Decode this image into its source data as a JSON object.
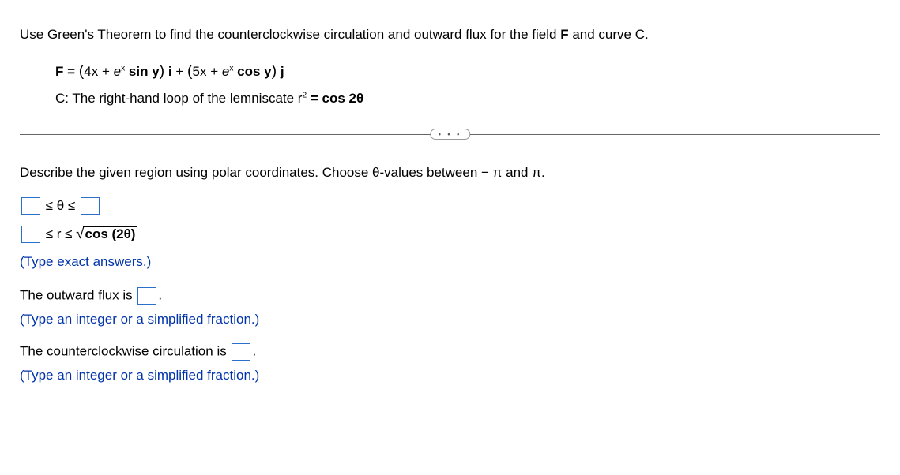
{
  "intro": "Use Green's Theorem to find the counterclockwise circulation and outward flux for the field ",
  "intro_tail": " and curve C.",
  "F_label": "F",
  "formula": {
    "lead": "F = ",
    "term1_open": "(",
    "term1_a": "4x + ",
    "term1_e": "e",
    "term1_exp": "x",
    "term1_b": " sin y",
    "term1_close": ")",
    "unit_i": " i ",
    "plus": "+ ",
    "term2_open": "(",
    "term2_a": "5x + ",
    "term2_e": "e",
    "term2_exp": "x",
    "term2_b": " cos y",
    "term2_close": ")",
    "unit_j": " j"
  },
  "curve": {
    "lead": "C: The right-hand loop of the lemniscate r",
    "exp": "2",
    "tail": " = cos 2θ"
  },
  "divider_dots": "• • •",
  "describe": {
    "part1": "Describe the given region using polar coordinates. Choose θ-values between ",
    "neg_pi": " − π",
    "mid": " and ",
    "pi": "π",
    "end": "."
  },
  "inputs": {
    "theta_rel": " ≤ θ ≤ ",
    "r_rel1": " ≤ r ≤ ",
    "sqrt_body": "cos (2θ)"
  },
  "hint1": "(Type exact answers.)",
  "flux_line": {
    "lead": "The outward flux is ",
    "tail": "."
  },
  "hint2": "(Type an integer or a simplified fraction.)",
  "circ_line": {
    "lead": "The counterclockwise circulation is ",
    "tail": "."
  },
  "hint3": "(Type an integer or a simplified fraction.)"
}
